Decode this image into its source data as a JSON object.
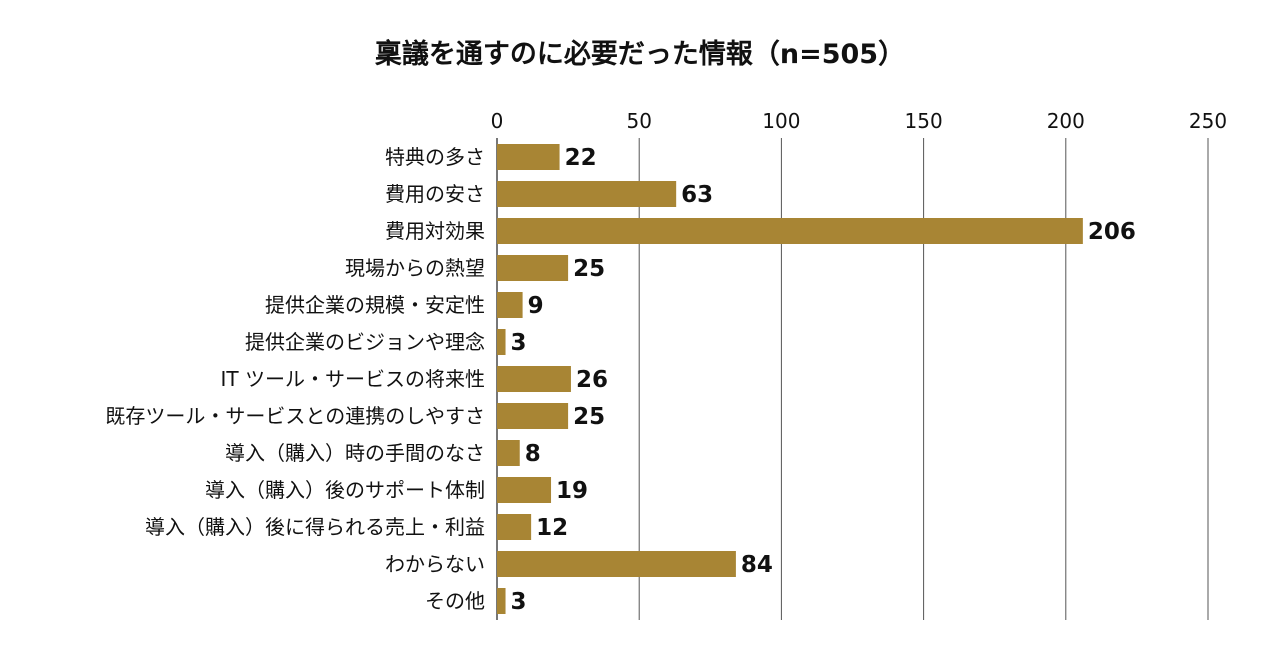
{
  "chart_data": {
    "type": "bar",
    "orientation": "horizontal",
    "title": "稟議を通すのに必要だった情報（n=505）",
    "xlabel": "",
    "ylabel": "",
    "xlim": [
      0,
      250
    ],
    "xticks": [
      0,
      50,
      100,
      150,
      200,
      250
    ],
    "grid": true,
    "categories": [
      "特典の多さ",
      "費用の安さ",
      "費用対効果",
      "現場からの熱望",
      "提供企業の規模・安定性",
      "提供企業のビジョンや理念",
      "IT ツール・サービスの将来性",
      "既存ツール・サービスとの連携のしやすさ",
      "導入（購入）時の手間のなさ",
      "導入（購入）後のサポート体制",
      "導入（購入）後に得られる売上・利益",
      "わからない",
      "その他"
    ],
    "values": [
      22,
      63,
      206,
      25,
      9,
      3,
      26,
      25,
      8,
      19,
      12,
      84,
      3
    ],
    "bar_color": "#a88534",
    "grid_color": "#555555"
  }
}
